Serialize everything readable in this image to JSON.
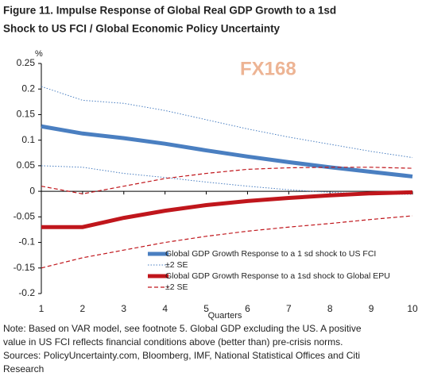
{
  "chart_data": {
    "type": "line",
    "title": [
      "Figure 11. Impulse Response of Global Real GDP Growth to a 1sd",
      "Shock to US FCI / Global Economic Policy Uncertainty"
    ],
    "y_unit": "%",
    "x_label": "Quarters",
    "watermark": "FX168",
    "x": [
      1,
      2,
      3,
      4,
      5,
      6,
      7,
      8,
      9,
      10
    ],
    "xlim": [
      1,
      10
    ],
    "xticks": [
      1,
      2,
      3,
      4,
      5,
      6,
      7,
      8,
      9,
      10
    ],
    "ylim": [
      -0.2,
      0.25
    ],
    "yticks": [
      -0.2,
      -0.15,
      -0.1,
      -0.05,
      0,
      0.05,
      0.1,
      0.15,
      0.2,
      0.25
    ],
    "series": [
      {
        "name": "Global GDP Growth Response to a 1 sd shock to US FCI",
        "color": "#4a7fc1",
        "style": "solid",
        "values": [
          0.127,
          0.113,
          0.104,
          0.093,
          0.08,
          0.068,
          0.057,
          0.047,
          0.038,
          0.029
        ]
      },
      {
        "name": "±2 SE",
        "color": "#4a7fc1",
        "style": "dotted",
        "values": [
          0.205,
          0.178,
          0.172,
          0.158,
          0.14,
          0.122,
          0.106,
          0.092,
          0.078,
          0.066
        ],
        "lower": [
          0.05,
          0.047,
          0.035,
          0.027,
          0.018,
          0.01,
          0.003,
          -0.002,
          -0.005,
          -0.006
        ]
      },
      {
        "name": "Global GDP Growth Response to a 1sd shock to Global EPU",
        "color": "#c0161c",
        "style": "solid",
        "values": [
          -0.07,
          -0.07,
          -0.052,
          -0.038,
          -0.027,
          -0.019,
          -0.013,
          -0.008,
          -0.004,
          -0.002
        ]
      },
      {
        "name": "±2 SE",
        "color": "#c0161c",
        "style": "dashed",
        "values": [
          0.01,
          -0.005,
          0.01,
          0.025,
          0.035,
          0.043,
          0.046,
          0.047,
          0.047,
          0.045
        ],
        "lower": [
          -0.15,
          -0.13,
          -0.115,
          -0.1,
          -0.088,
          -0.078,
          -0.07,
          -0.063,
          -0.055,
          -0.048
        ]
      }
    ],
    "note": [
      "Note: Based on VAR model, see footnote 5. Global GDP excluding the US. A positive",
      "value in US FCI reflects financial conditions above (better than) pre-crisis norms.",
      "Sources: PolicyUncertainty.com, Bloomberg, IMF, National Statistical Offices and Citi",
      "Research"
    ]
  }
}
